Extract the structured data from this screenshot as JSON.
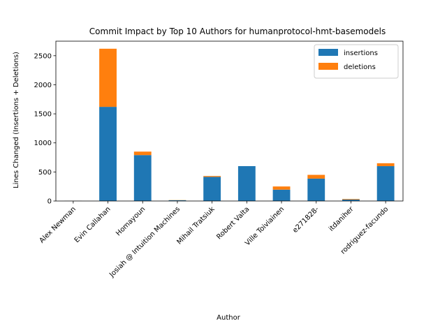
{
  "chart_data": {
    "type": "bar",
    "stacked": true,
    "title": "Commit Impact by Top 10 Authors for humanprotocol-hmt-basemodels",
    "xlabel": "Author",
    "ylabel": "Lines Changed (Insertions + Deletions)",
    "ylim": [
      0,
      2750
    ],
    "yticks": [
      0,
      500,
      1000,
      1500,
      2000,
      2500
    ],
    "categories": [
      "Alex Newman",
      "Evin Callahan",
      "Homayoun",
      "Josiah @ Intuition Machines",
      "Mihail Tratsiuk",
      "Robert Valta",
      "Ville Toiviainen",
      "e271828-",
      "itdaniher",
      "rodriguez-facundo"
    ],
    "series": [
      {
        "name": "insertions",
        "color": "#1f77b4",
        "values": [
          2,
          1620,
          790,
          12,
          415,
          600,
          195,
          385,
          25,
          600
        ]
      },
      {
        "name": "deletions",
        "color": "#ff7f0e",
        "values": [
          1,
          1000,
          60,
          3,
          15,
          0,
          55,
          65,
          10,
          50
        ]
      }
    ],
    "legend": {
      "position": "upper right"
    },
    "grid": false
  }
}
